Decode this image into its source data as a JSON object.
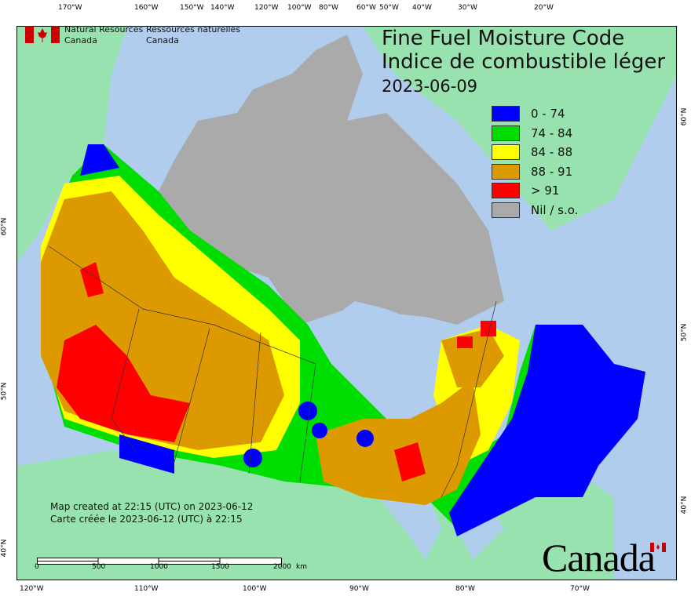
{
  "header": {
    "org_en": "Natural Resources\nCanada",
    "org_fr": "Ressources naturelles\nCanada",
    "org_en_1": "Natural Resources",
    "org_en_2": "Canada",
    "org_fr_1": "Ressources naturelles",
    "org_fr_2": "Canada"
  },
  "title": {
    "en": "Fine Fuel Moisture Code",
    "fr": "Indice de combustible léger",
    "date": "2023-06-09"
  },
  "legend": [
    {
      "label": "0 - 74",
      "color": "#0000ff"
    },
    {
      "label": "74 - 84",
      "color": "#00dd00"
    },
    {
      "label": "84 - 88",
      "color": "#ffff00"
    },
    {
      "label": "88 - 91",
      "color": "#dd9900"
    },
    {
      "label": "> 91",
      "color": "#ff0000"
    },
    {
      "label": "Nil / s.o.",
      "color": "#aaaaaa"
    }
  ],
  "colors": {
    "water": "#b0cdee",
    "land_other": "#98e2b0",
    "nodata": "#aaaaaa"
  },
  "axes": {
    "top": [
      "170°W",
      "160°W",
      "150°W",
      "140°W",
      "120°W",
      "100°W",
      "80°W",
      "60°W",
      "50°W",
      "40°W",
      "30°W",
      "20°W"
    ],
    "bottom": [
      "120°W",
      "110°W",
      "100°W",
      "90°W",
      "80°W",
      "70°W"
    ],
    "left": [
      "60°N",
      "50°N",
      "40°N"
    ],
    "right": [
      "60°N",
      "50°N",
      "40°N"
    ]
  },
  "footer": {
    "created_en": "Map created at 22:15 (UTC) on 2023-06-12",
    "created_fr": "Carte créée le 2023-06-12 (UTC) à 22:15",
    "wordmark": "Canada"
  },
  "scale": {
    "labels": [
      "0",
      "500",
      "1000",
      "1500",
      "2000"
    ],
    "unit": "km"
  }
}
